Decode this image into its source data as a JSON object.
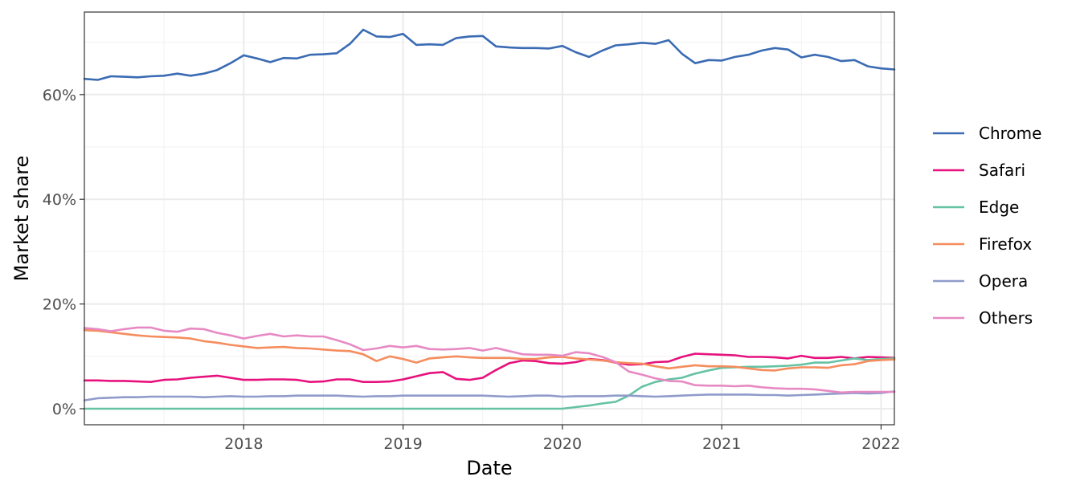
{
  "chart_data": {
    "type": "line",
    "title": "",
    "xlabel": "Date",
    "ylabel": "Market share",
    "x_ticks": [
      "2018",
      "2019",
      "2020",
      "2021",
      "2022"
    ],
    "y_ticks": [
      "0%",
      "20%",
      "40%",
      "60%"
    ],
    "xlim": [
      "2017-01",
      "2022-02"
    ],
    "ylim": [
      0,
      75
    ],
    "grid": true,
    "legend_position": "right",
    "dates": [
      "2017-01",
      "2017-02",
      "2017-03",
      "2017-04",
      "2017-05",
      "2017-06",
      "2017-07",
      "2017-08",
      "2017-09",
      "2017-10",
      "2017-11",
      "2017-12",
      "2018-01",
      "2018-02",
      "2018-03",
      "2018-04",
      "2018-05",
      "2018-06",
      "2018-07",
      "2018-08",
      "2018-09",
      "2018-10",
      "2018-11",
      "2018-12",
      "2019-01",
      "2019-02",
      "2019-03",
      "2019-04",
      "2019-05",
      "2019-06",
      "2019-07",
      "2019-08",
      "2019-09",
      "2019-10",
      "2019-11",
      "2019-12",
      "2020-01",
      "2020-02",
      "2020-03",
      "2020-04",
      "2020-05",
      "2020-06",
      "2020-07",
      "2020-08",
      "2020-09",
      "2020-10",
      "2020-11",
      "2020-12",
      "2021-01",
      "2021-02",
      "2021-03",
      "2021-04",
      "2021-05",
      "2021-06",
      "2021-07",
      "2021-08",
      "2021-09",
      "2021-10",
      "2021-11",
      "2021-12",
      "2022-01",
      "2022-02"
    ],
    "series": [
      {
        "name": "Chrome",
        "color": "#3a6bb3",
        "values": [
          63.0,
          62.8,
          63.5,
          63.4,
          63.3,
          63.5,
          63.6,
          64.0,
          63.6,
          64.0,
          64.7,
          66.0,
          67.5,
          66.9,
          66.2,
          67.0,
          66.9,
          67.6,
          67.7,
          67.9,
          69.7,
          72.4,
          71.1,
          71.0,
          71.6,
          69.5,
          69.6,
          69.5,
          70.8,
          71.1,
          71.2,
          69.2,
          69.0,
          68.9,
          68.9,
          68.8,
          69.3,
          68.1,
          67.2,
          68.4,
          69.4,
          69.6,
          69.9,
          69.7,
          70.4,
          67.8,
          66.0,
          66.6,
          66.5,
          67.2,
          67.6,
          68.4,
          68.9,
          68.6,
          67.1,
          67.6,
          67.2,
          66.4,
          66.6,
          65.4,
          65.0,
          64.8
        ]
      },
      {
        "name": "Safari",
        "color": "#e7117d",
        "values": [
          5.4,
          5.4,
          5.3,
          5.3,
          5.2,
          5.1,
          5.5,
          5.6,
          5.9,
          6.1,
          6.3,
          5.9,
          5.5,
          5.5,
          5.6,
          5.6,
          5.5,
          5.1,
          5.2,
          5.6,
          5.6,
          5.1,
          5.1,
          5.2,
          5.6,
          6.2,
          6.8,
          7.0,
          5.7,
          5.5,
          5.9,
          7.4,
          8.7,
          9.2,
          9.1,
          8.7,
          8.6,
          8.9,
          9.5,
          9.3,
          8.8,
          8.4,
          8.5,
          8.9,
          9.0,
          9.9,
          10.5,
          10.4,
          10.3,
          10.2,
          9.9,
          9.9,
          9.8,
          9.6,
          10.1,
          9.7,
          9.7,
          9.9,
          9.6,
          9.9,
          9.8,
          9.7
        ]
      },
      {
        "name": "Edge",
        "color": "#66c2a4",
        "values": [
          0,
          0,
          0,
          0,
          0,
          0,
          0,
          0,
          0,
          0,
          0,
          0,
          0,
          0,
          0,
          0,
          0,
          0,
          0,
          0,
          0,
          0,
          0,
          0,
          0,
          0,
          0,
          0,
          0,
          0,
          0,
          0,
          0,
          0,
          0,
          0,
          0,
          0.3,
          0.6,
          1.0,
          1.3,
          2.5,
          4.2,
          5.1,
          5.6,
          5.9,
          6.7,
          7.3,
          7.8,
          7.9,
          8.0,
          8.0,
          8.1,
          8.2,
          8.4,
          8.8,
          8.8,
          9.2,
          9.6,
          9.3,
          9.5,
          9.6
        ]
      },
      {
        "name": "Firefox",
        "color": "#f58d5e",
        "values": [
          15.0,
          14.9,
          14.6,
          14.3,
          14.0,
          13.8,
          13.7,
          13.6,
          13.4,
          12.9,
          12.6,
          12.2,
          11.9,
          11.6,
          11.7,
          11.8,
          11.6,
          11.5,
          11.3,
          11.1,
          11.0,
          10.4,
          9.1,
          10.0,
          9.5,
          8.8,
          9.6,
          9.8,
          10.0,
          9.8,
          9.7,
          9.7,
          9.7,
          9.5,
          9.5,
          9.8,
          9.9,
          9.6,
          9.4,
          9.2,
          8.9,
          8.7,
          8.6,
          8.1,
          7.7,
          8.0,
          8.3,
          8.1,
          8.1,
          8.0,
          7.7,
          7.4,
          7.3,
          7.7,
          7.9,
          7.9,
          7.8,
          8.3,
          8.5,
          9.1,
          9.3,
          9.4
        ]
      },
      {
        "name": "Opera",
        "color": "#8f9ccb",
        "values": [
          1.6,
          2.0,
          2.1,
          2.2,
          2.2,
          2.3,
          2.3,
          2.3,
          2.3,
          2.2,
          2.3,
          2.4,
          2.3,
          2.3,
          2.4,
          2.4,
          2.5,
          2.5,
          2.5,
          2.5,
          2.4,
          2.3,
          2.4,
          2.4,
          2.5,
          2.5,
          2.5,
          2.5,
          2.5,
          2.5,
          2.5,
          2.4,
          2.3,
          2.4,
          2.5,
          2.5,
          2.3,
          2.4,
          2.4,
          2.4,
          2.5,
          2.5,
          2.4,
          2.3,
          2.4,
          2.5,
          2.6,
          2.7,
          2.7,
          2.7,
          2.7,
          2.6,
          2.6,
          2.5,
          2.6,
          2.7,
          2.8,
          2.9,
          3.0,
          2.9,
          3.0,
          3.3
        ]
      },
      {
        "name": "Others",
        "color": "#e78ac3",
        "values": [
          15.4,
          15.2,
          14.8,
          15.2,
          15.5,
          15.5,
          14.9,
          14.7,
          15.3,
          15.2,
          14.5,
          14.0,
          13.4,
          13.9,
          14.3,
          13.8,
          14.0,
          13.8,
          13.8,
          13.1,
          12.3,
          11.2,
          11.5,
          12.0,
          11.7,
          12.0,
          11.4,
          11.3,
          11.4,
          11.6,
          11.1,
          11.6,
          11.0,
          10.4,
          10.3,
          10.3,
          10.1,
          10.8,
          10.6,
          9.9,
          8.9,
          7.1,
          6.5,
          5.8,
          5.3,
          5.2,
          4.5,
          4.4,
          4.4,
          4.3,
          4.4,
          4.1,
          3.9,
          3.8,
          3.8,
          3.7,
          3.4,
          3.1,
          3.2,
          3.2,
          3.2,
          3.2
        ]
      }
    ]
  }
}
